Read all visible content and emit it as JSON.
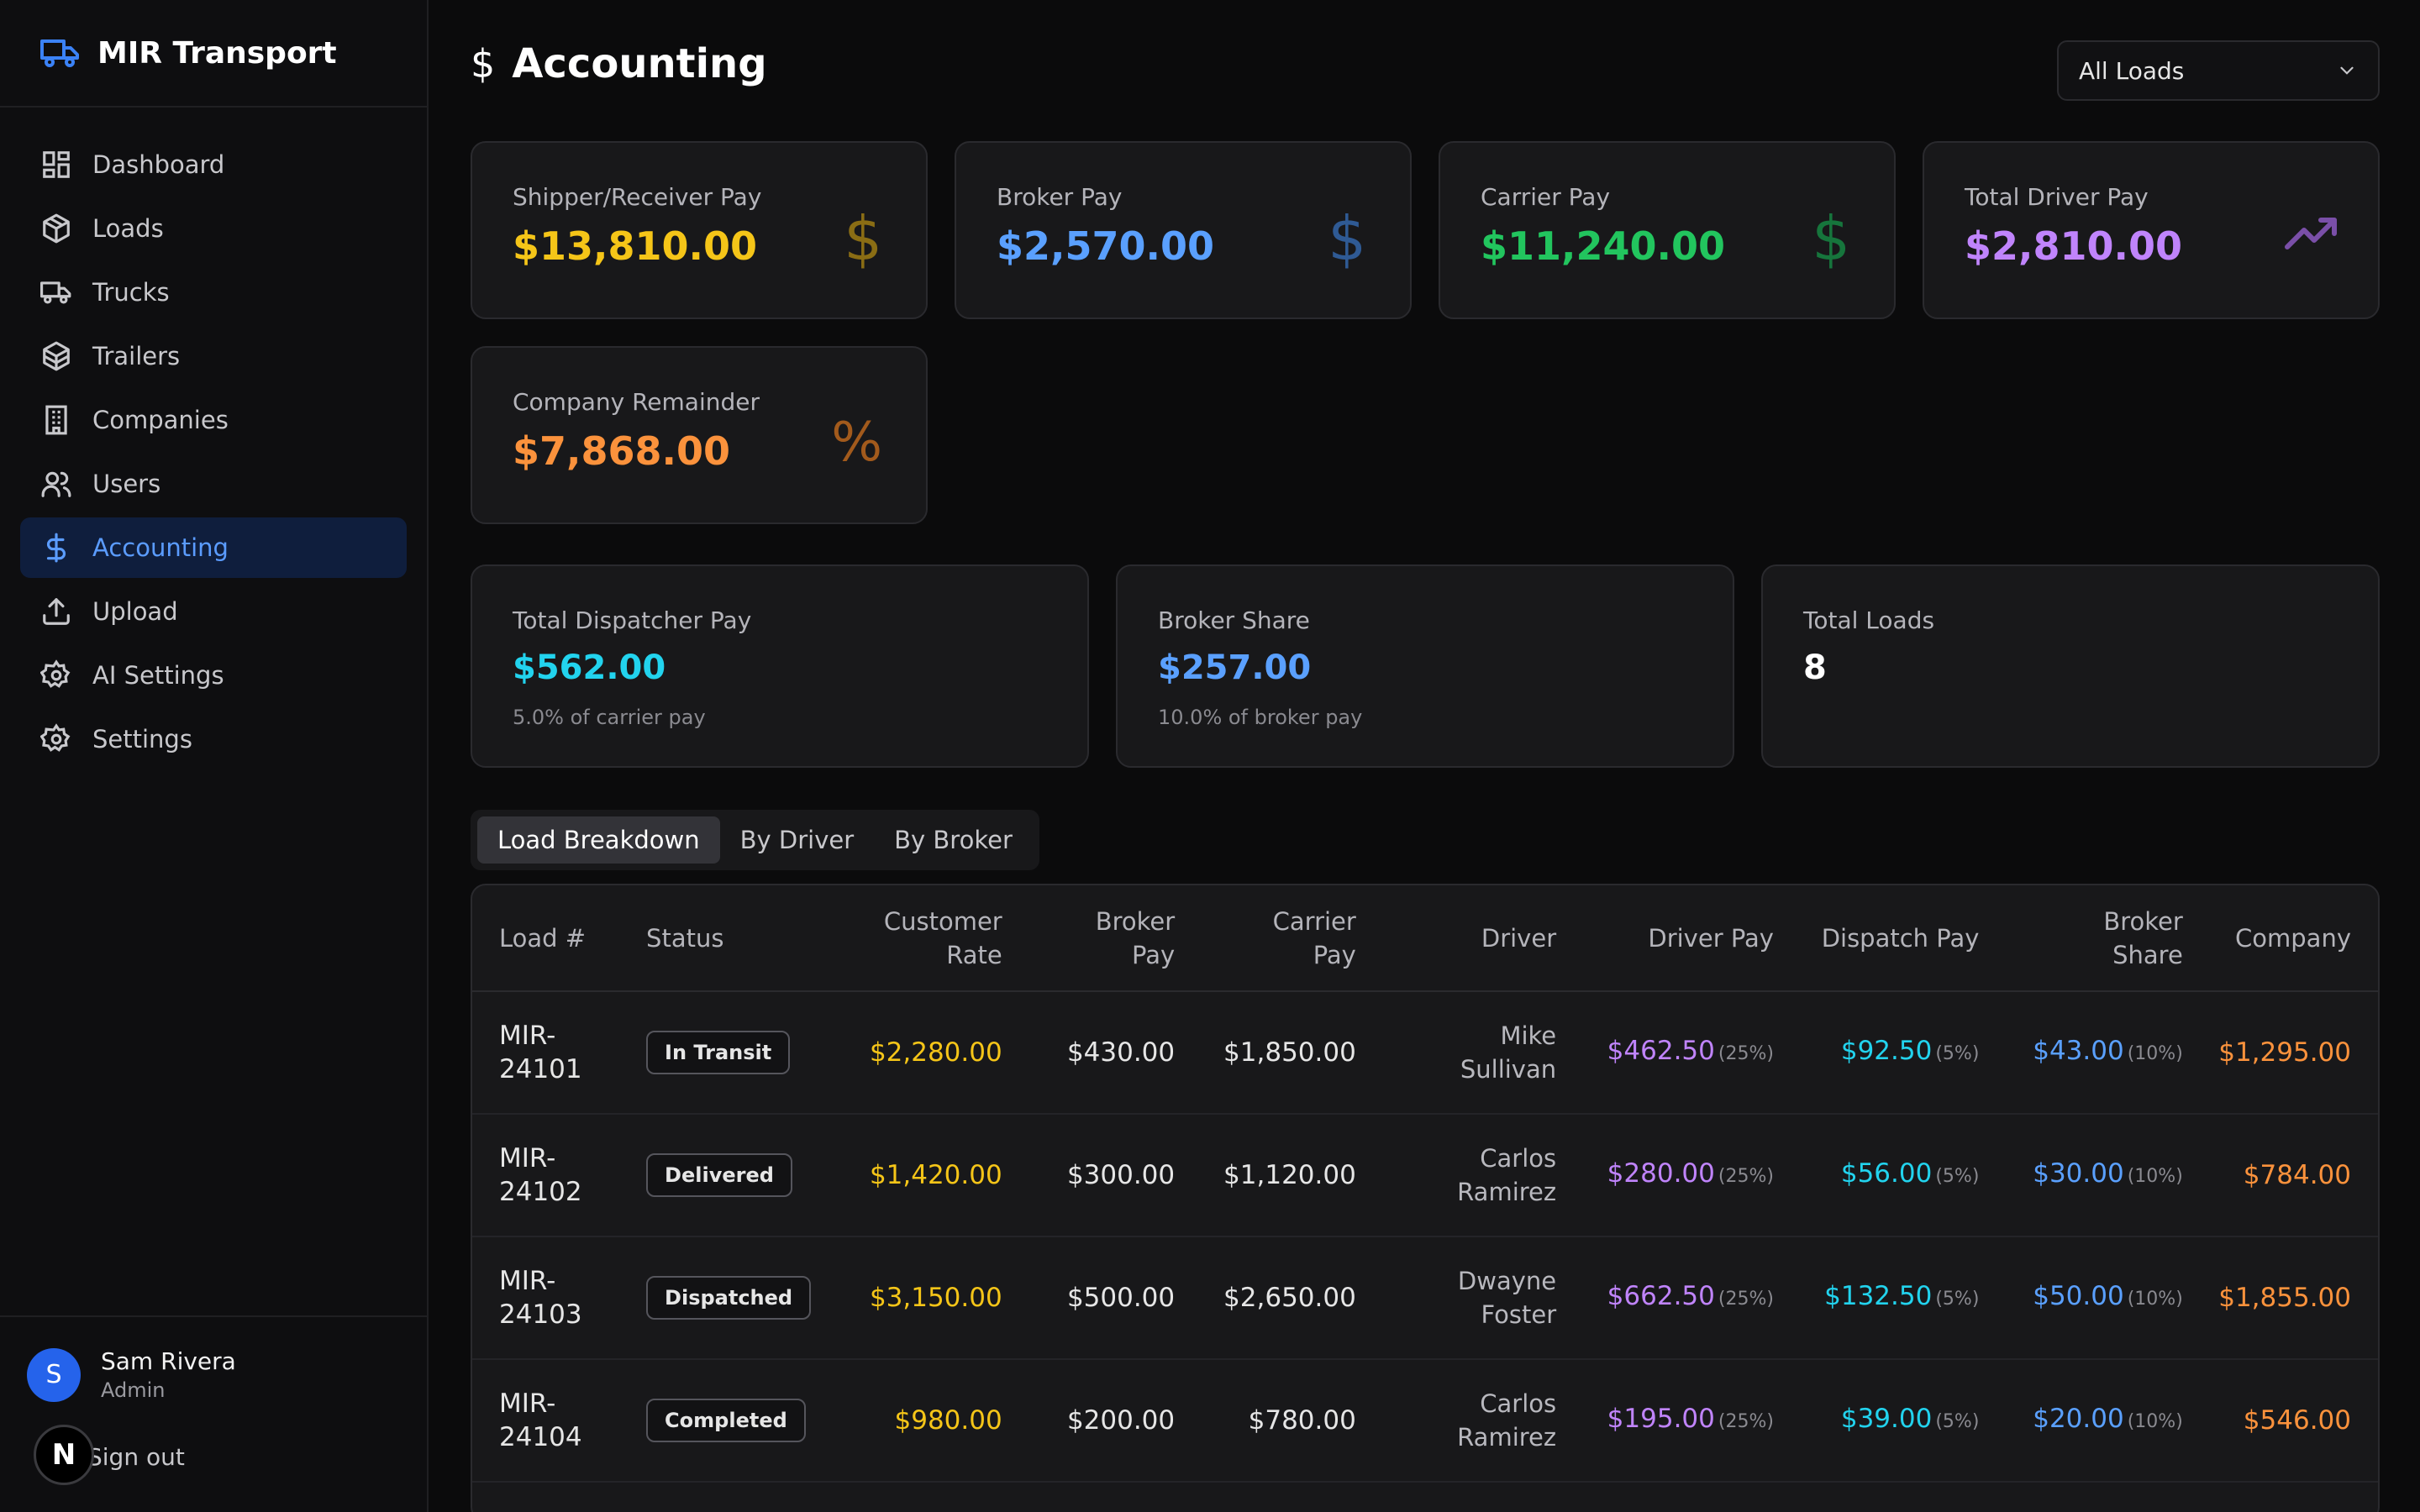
{
  "brand": {
    "name": "MIR Transport",
    "icon": "truck-icon"
  },
  "nav": [
    {
      "label": "Dashboard",
      "icon": "dashboard-icon"
    },
    {
      "label": "Loads",
      "icon": "box-icon"
    },
    {
      "label": "Trucks",
      "icon": "truck-icon"
    },
    {
      "label": "Trailers",
      "icon": "trailer-icon"
    },
    {
      "label": "Companies",
      "icon": "building-icon"
    },
    {
      "label": "Users",
      "icon": "users-icon"
    },
    {
      "label": "Accounting",
      "icon": "dollar-icon",
      "active": true
    },
    {
      "label": "Upload",
      "icon": "upload-icon"
    },
    {
      "label": "AI Settings",
      "icon": "gear-icon"
    },
    {
      "label": "Settings",
      "icon": "gear-icon"
    }
  ],
  "user": {
    "initial": "S",
    "name": "Sam Rivera",
    "role": "Admin",
    "signout": "Sign out",
    "badge": "N"
  },
  "page": {
    "title": "Accounting",
    "icon": "$"
  },
  "filter": {
    "selected": "All Loads"
  },
  "summary": {
    "shipper": {
      "label": "Shipper/Receiver Pay",
      "value": "$13,810.00",
      "icon": "$",
      "color": "#f5c518"
    },
    "broker": {
      "label": "Broker Pay",
      "value": "$2,570.00",
      "icon": "$",
      "color": "#5aa0ff"
    },
    "carrier": {
      "label": "Carrier Pay",
      "value": "$11,240.00",
      "icon": "$",
      "color": "#22c55e"
    },
    "driver": {
      "label": "Total Driver Pay",
      "value": "$2,810.00",
      "icon": "trending-up-icon",
      "color": "#c084fc"
    },
    "company": {
      "label": "Company Remainder",
      "value": "$7,868.00",
      "icon": "%",
      "color": "#fb923c"
    }
  },
  "stats": {
    "dispatcher": {
      "label": "Total Dispatcher Pay",
      "value": "$562.00",
      "sub": "5.0% of carrier pay"
    },
    "broker_share": {
      "label": "Broker Share",
      "value": "$257.00",
      "sub": "10.0% of broker pay"
    },
    "loads": {
      "label": "Total Loads",
      "value": "8"
    }
  },
  "tabs": [
    "Load Breakdown",
    "By Driver",
    "By Broker"
  ],
  "table": {
    "headers": {
      "load": "Load #",
      "status": "Status",
      "customer_rate_1": "Customer",
      "customer_rate_2": "Rate",
      "broker_pay_1": "Broker",
      "broker_pay_2": "Pay",
      "carrier_pay_1": "Carrier",
      "carrier_pay_2": "Pay",
      "driver": "Driver",
      "driver_pay": "Driver Pay",
      "dispatch_pay": "Dispatch Pay",
      "broker_share_1": "Broker",
      "broker_share_2": "Share",
      "company": "Company"
    },
    "rows": [
      {
        "load_1": "MIR-",
        "load_2": "24101",
        "status": "In Transit",
        "customer_rate": "$2,280.00",
        "broker_pay": "$430.00",
        "carrier_pay": "$1,850.00",
        "driver_1": "Mike",
        "driver_2": "Sullivan",
        "driver_pay": "$462.50",
        "driver_pct": "(25%)",
        "dispatch_pay": "$92.50",
        "dispatch_pct": "(5%)",
        "broker_share": "$43.00",
        "broker_pct": "(10%)",
        "company": "$1,295.00"
      },
      {
        "load_1": "MIR-",
        "load_2": "24102",
        "status": "Delivered",
        "customer_rate": "$1,420.00",
        "broker_pay": "$300.00",
        "carrier_pay": "$1,120.00",
        "driver_1": "Carlos",
        "driver_2": "Ramirez",
        "driver_pay": "$280.00",
        "driver_pct": "(25%)",
        "dispatch_pay": "$56.00",
        "dispatch_pct": "(5%)",
        "broker_share": "$30.00",
        "broker_pct": "(10%)",
        "company": "$784.00"
      },
      {
        "load_1": "MIR-",
        "load_2": "24103",
        "status": "Dispatched",
        "customer_rate": "$3,150.00",
        "broker_pay": "$500.00",
        "carrier_pay": "$2,650.00",
        "driver_1": "Dwayne",
        "driver_2": "Foster",
        "driver_pay": "$662.50",
        "driver_pct": "(25%)",
        "dispatch_pay": "$132.50",
        "dispatch_pct": "(5%)",
        "broker_share": "$50.00",
        "broker_pct": "(10%)",
        "company": "$1,855.00"
      },
      {
        "load_1": "MIR-",
        "load_2": "24104",
        "status": "Completed",
        "customer_rate": "$980.00",
        "broker_pay": "$200.00",
        "carrier_pay": "$780.00",
        "driver_1": "Carlos",
        "driver_2": "Ramirez",
        "driver_pay": "$195.00",
        "driver_pct": "(25%)",
        "dispatch_pay": "$39.00",
        "dispatch_pct": "(5%)",
        "broker_share": "$20.00",
        "broker_pct": "(10%)",
        "company": "$546.00"
      }
    ]
  }
}
